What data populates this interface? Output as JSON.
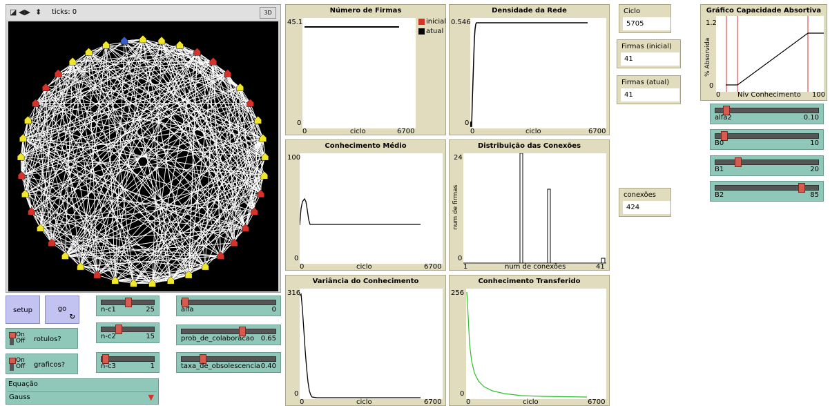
{
  "world": {
    "ticks_label": "ticks: 0",
    "btn_3d": "3D",
    "turtle_count": 41
  },
  "plots": {
    "numero_firmas": {
      "title": "Número de Firmas",
      "ymax": "45.1",
      "ymin": "0",
      "xmin": "0",
      "xmax": "6700",
      "xlabel": "ciclo",
      "legend": [
        {
          "name": "inicial",
          "color": "#d7322a"
        },
        {
          "name": "atual",
          "color": "#000000"
        }
      ]
    },
    "densidade": {
      "title": "Densidade da Rede",
      "ymax": "0.546",
      "ymin": "0",
      "xmin": "0",
      "xmax": "6700",
      "xlabel": "ciclo"
    },
    "conhecimento_medio": {
      "title": "Conhecimento Médio",
      "ymax": "100",
      "ymin": "0",
      "xmin": "0",
      "xmax": "6700",
      "xlabel": "ciclo"
    },
    "distribuicao": {
      "title": "Distribuição das Conexões",
      "ymax": "24",
      "ymin": "0",
      "xmin": "1",
      "xmax": "41",
      "xlabel": "num de conexões",
      "ylabel": "num de firmas"
    },
    "variancia": {
      "title": "Variância do Conhecimento",
      "ymax": "316",
      "ymin": "0",
      "xmin": "0",
      "xmax": "6700",
      "xlabel": "ciclo"
    },
    "transferido": {
      "title": "Conhecimento Transferido",
      "ymax": "256",
      "ymin": "0",
      "xmin": "0",
      "xmax": "6700",
      "xlabel": "ciclo"
    },
    "capacidade": {
      "title": "Gráfico Capacidade Absortiva",
      "ymax": "1.2",
      "ymin": "0",
      "xmin": "0",
      "xmax": "100",
      "xlabel": "Niv Conhecimento",
      "ylabel": "% Absorvida"
    }
  },
  "monitors": {
    "ciclo": {
      "label": "Ciclo",
      "value": "5705"
    },
    "firmas_inicial": {
      "label": "Firmas (inicial)",
      "value": "41"
    },
    "firmas_atual": {
      "label": "Firmas (atual)",
      "value": "41"
    },
    "conexoes": {
      "label": "conexões",
      "value": "424"
    }
  },
  "sliders": {
    "alfa2": {
      "name": "alfa2",
      "value": "0.10",
      "fraction": 0.08
    },
    "b0": {
      "name": "B0",
      "value": "10",
      "fraction": 0.06
    },
    "b1": {
      "name": "B1",
      "value": "20",
      "fraction": 0.2
    },
    "b2": {
      "name": "B2",
      "value": "85",
      "fraction": 0.85
    },
    "nc1": {
      "name": "n-c1",
      "value": "25",
      "fraction": 0.5
    },
    "nc2": {
      "name": "n-c2",
      "value": "15",
      "fraction": 0.3
    },
    "nc3": {
      "name": "n-c3",
      "value": "1",
      "fraction": 0.02
    },
    "alfa": {
      "name": "alfa",
      "value": "0",
      "fraction": 0.0
    },
    "prob": {
      "name": "prob_de_colaboracao",
      "value": "0.65",
      "fraction": 0.65
    },
    "taxa": {
      "name": "taxa_de_obsolescencia",
      "value": "0.40",
      "fraction": 0.2
    }
  },
  "buttons": {
    "setup": "setup",
    "go": "go",
    "go_icon": "forever-icon"
  },
  "switches": {
    "rotulos": {
      "label": "rotulos?",
      "on": "On",
      "off": "Off"
    },
    "graficos": {
      "label": "graficos?",
      "on": "On",
      "off": "Off"
    }
  },
  "chooser": {
    "label": "Equação",
    "value": "Gauss"
  }
}
